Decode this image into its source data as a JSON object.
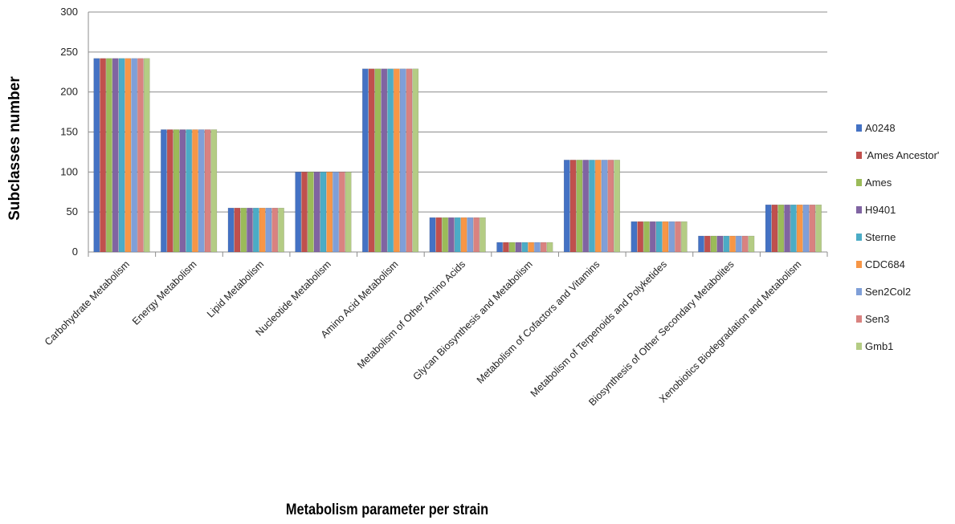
{
  "chart_data": {
    "type": "bar",
    "title": "",
    "xlabel": "Metabolism parameter per strain",
    "ylabel": "Subclasses number",
    "ylim": [
      0,
      300
    ],
    "yticks": [
      0,
      50,
      100,
      150,
      200,
      250,
      300
    ],
    "grid": true,
    "legend_position": "right",
    "categories": [
      "Carbohydrate Metabolism",
      "Energy Metabolism",
      "Lipid Metabolism",
      "Nucleotide Metabolism",
      "Amino Acid Metabolism",
      "Metabolism of Other Amino Acids",
      "Glycan Biosynthesis and Metabolism",
      "Metabolism of Cofactors and Vitamins",
      "Metabolism of Terpenoids and Polyketides",
      "Biosynthesis of Other Secondary Metabolites",
      "Xenobiotics Biodegradation and Metabolism"
    ],
    "series": [
      {
        "name": "A0248",
        "color": "#4472c4",
        "values": [
          242,
          153,
          55,
          100,
          229,
          43,
          12,
          115,
          38,
          20,
          59
        ]
      },
      {
        "name": "'Ames Ancestor'",
        "color": "#c0504d",
        "values": [
          242,
          153,
          55,
          100,
          229,
          43,
          12,
          115,
          38,
          20,
          59
        ]
      },
      {
        "name": "Ames",
        "color": "#9bbb59",
        "values": [
          242,
          153,
          55,
          100,
          229,
          43,
          12,
          115,
          38,
          20,
          59
        ]
      },
      {
        "name": "H9401",
        "color": "#8064a2",
        "values": [
          242,
          153,
          55,
          100,
          229,
          43,
          12,
          115,
          38,
          20,
          59
        ]
      },
      {
        "name": "Sterne",
        "color": "#4bacc6",
        "values": [
          242,
          153,
          55,
          100,
          229,
          43,
          12,
          115,
          38,
          20,
          59
        ]
      },
      {
        "name": "CDC684",
        "color": "#f79646",
        "values": [
          242,
          153,
          55,
          100,
          229,
          43,
          12,
          115,
          38,
          20,
          59
        ]
      },
      {
        "name": "Sen2Col2",
        "color": "#7f9fd8",
        "values": [
          242,
          153,
          55,
          100,
          229,
          43,
          12,
          115,
          38,
          20,
          59
        ]
      },
      {
        "name": "Sen3",
        "color": "#d98280",
        "values": [
          242,
          153,
          55,
          100,
          229,
          43,
          12,
          115,
          38,
          20,
          59
        ]
      },
      {
        "name": "Gmb1",
        "color": "#b4cc84",
        "values": [
          242,
          153,
          55,
          100,
          229,
          43,
          12,
          115,
          38,
          20,
          59
        ]
      }
    ]
  }
}
